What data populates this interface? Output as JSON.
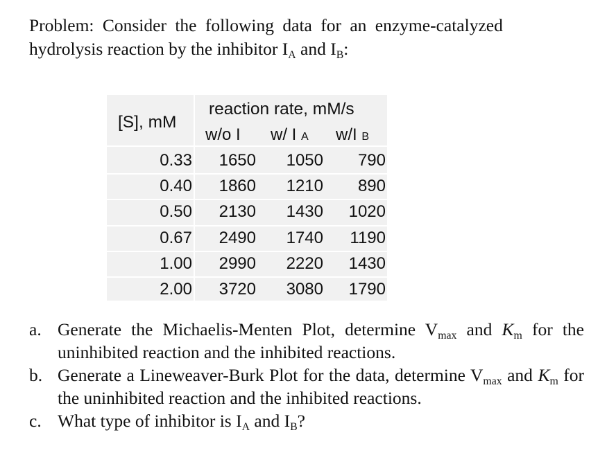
{
  "problem": {
    "line1": "Problem: Consider the following data for an enzyme-catalyzed",
    "line2_prefix": "hydrolysis reaction by the inhibitor I",
    "sub_a": "A",
    "line2_mid": " and I",
    "sub_b": "B",
    "line2_suffix": ":"
  },
  "table": {
    "s_header": "[S], mM",
    "rate_header": "reaction rate, mM/s",
    "col_wo": "w/o I",
    "col_wa_prefix": "w/ I",
    "col_wa_sub": "A",
    "col_wb_prefix": "w/I",
    "col_wb_sub": "B",
    "rows": [
      {
        "s": "0.33",
        "wo": "1650",
        "wa": "1050",
        "wb": "790"
      },
      {
        "s": "0.40",
        "wo": "1860",
        "wa": "1210",
        "wb": "890"
      },
      {
        "s": "0.50",
        "wo": "2130",
        "wa": "1430",
        "wb": "1020"
      },
      {
        "s": "0.67",
        "wo": "2490",
        "wa": "1740",
        "wb": "1190"
      },
      {
        "s": "1.00",
        "wo": "2990",
        "wa": "2220",
        "wb": "1430"
      },
      {
        "s": "2.00",
        "wo": "3720",
        "wa": "3080",
        "wb": "1790"
      }
    ]
  },
  "questions": {
    "a": {
      "mark": "a.",
      "t1": "Generate the Michaelis-Menten Plot, determine V",
      "s1": "max",
      "t2": " and ",
      "k": "K",
      "ks": "m",
      "t3": " for the uninhibited reaction and the inhibited reactions."
    },
    "b": {
      "mark": "b.",
      "t1": "Generate a Lineweaver-Burk Plot for the data, determine V",
      "s1": "max",
      "t2": " and ",
      "k": "K",
      "ks": "m",
      "t3": " for the uninhibited reaction and the inhibited reactions."
    },
    "c": {
      "mark": "c.",
      "t1": "What type of inhibitor is I",
      "s1": "A",
      "t2": " and I",
      "s2": "B",
      "t3": "?"
    }
  }
}
